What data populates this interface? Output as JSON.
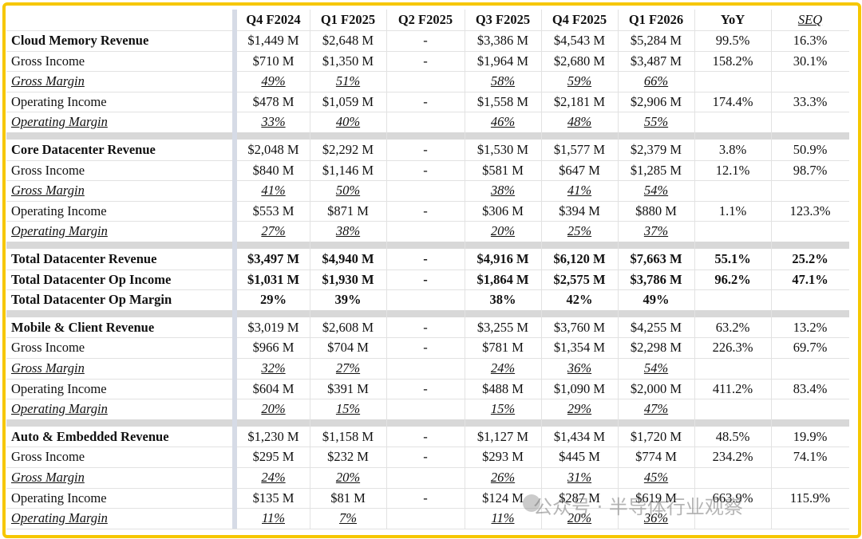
{
  "table": {
    "header": [
      "Q4 F2024",
      "Q1 F2025",
      "Q2 F2025",
      "Q3 F2025",
      "Q4 F2025",
      "Q1 F2026",
      "YoY",
      "SEQ"
    ],
    "groups": [
      {
        "rows": [
          {
            "label": "Cloud Memory Revenue",
            "cells": [
              "$1,449 M",
              "$2,648 M",
              "-",
              "$3,386 M",
              "$4,543 M",
              "$5,284 M",
              "99.5%",
              "16.3%"
            ]
          },
          {
            "label": "Gross Income",
            "cells": [
              "$710 M",
              "$1,350 M",
              "-",
              "$1,964 M",
              "$2,680 M",
              "$3,487 M",
              "158.2%",
              "30.1%"
            ]
          },
          {
            "label": "Gross Margin",
            "cells": [
              "49%",
              "51%",
              null,
              "58%",
              "59%",
              "66%",
              null,
              null
            ]
          },
          {
            "label": "Operating Income",
            "cells": [
              "$478 M",
              "$1,059 M",
              "-",
              "$1,558 M",
              "$2,181 M",
              "$2,906 M",
              "174.4%",
              "33.3%"
            ]
          },
          {
            "label": "Operating Margin",
            "cells": [
              "33%",
              "40%",
              null,
              "46%",
              "48%",
              "55%",
              null,
              null
            ]
          }
        ]
      },
      {
        "rows": [
          {
            "label": "Core Datacenter Revenue",
            "cells": [
              "$2,048 M",
              "$2,292 M",
              "-",
              "$1,530 M",
              "$1,577 M",
              "$2,379 M",
              "3.8%",
              "50.9%"
            ]
          },
          {
            "label": "Gross Income",
            "cells": [
              "$840 M",
              "$1,146 M",
              "-",
              "$581 M",
              "$647 M",
              "$1,285 M",
              "12.1%",
              "98.7%"
            ]
          },
          {
            "label": "Gross Margin",
            "cells": [
              "41%",
              "50%",
              null,
              "38%",
              "41%",
              "54%",
              null,
              null
            ]
          },
          {
            "label": "Operating Income",
            "cells": [
              "$553 M",
              "$871 M",
              "-",
              "$306 M",
              "$394 M",
              "$880 M",
              "1.1%",
              "123.3%"
            ]
          },
          {
            "label": "Operating Margin",
            "cells": [
              "27%",
              "38%",
              null,
              "20%",
              "25%",
              "37%",
              null,
              null
            ]
          }
        ]
      },
      {
        "rows": [
          {
            "label": "Total Datacenter Revenue",
            "cells": [
              "$3,497 M",
              "$4,940 M",
              "-",
              "$4,916 M",
              "$6,120 M",
              "$7,663 M",
              "55.1%",
              "25.2%"
            ]
          },
          {
            "label": "Total Datacenter Op Income",
            "cells": [
              "$1,031 M",
              "$1,930 M",
              "-",
              "$1,864 M",
              "$2,575 M",
              "$3,786 M",
              "96.2%",
              "47.1%"
            ]
          },
          {
            "label": "Total Datacenter Op Margin",
            "cells": [
              "29%",
              "39%",
              null,
              "38%",
              "42%",
              "49%",
              null,
              null
            ]
          }
        ]
      },
      {
        "rows": [
          {
            "label": "Mobile & Client Revenue",
            "cells": [
              "$3,019 M",
              "$2,608 M",
              "-",
              "$3,255 M",
              "$3,760 M",
              "$4,255 M",
              "63.2%",
              "13.2%"
            ]
          },
          {
            "label": "Gross Income",
            "cells": [
              "$966 M",
              "$704 M",
              "-",
              "$781 M",
              "$1,354 M",
              "$2,298 M",
              "226.3%",
              "69.7%"
            ]
          },
          {
            "label": "Gross Margin",
            "cells": [
              "32%",
              "27%",
              null,
              "24%",
              "36%",
              "54%",
              null,
              null
            ]
          },
          {
            "label": "Operating Income",
            "cells": [
              "$604 M",
              "$391 M",
              "-",
              "$488 M",
              "$1,090 M",
              "$2,000 M",
              "411.2%",
              "83.4%"
            ]
          },
          {
            "label": "Operating Margin",
            "cells": [
              "20%",
              "15%",
              null,
              "15%",
              "29%",
              "47%",
              null,
              null
            ]
          }
        ]
      },
      {
        "rows": [
          {
            "label": "Auto & Embedded Revenue",
            "cells": [
              "$1,230 M",
              "$1,158 M",
              "-",
              "$1,127 M",
              "$1,434 M",
              "$1,720 M",
              "48.5%",
              "19.9%"
            ]
          },
          {
            "label": "Gross Income",
            "cells": [
              "$295 M",
              "$232 M",
              "-",
              "$293 M",
              "$445 M",
              "$774 M",
              "234.2%",
              "74.1%"
            ]
          },
          {
            "label": "Gross Margin",
            "cells": [
              "24%",
              "20%",
              null,
              "26%",
              "31%",
              "45%",
              null,
              null
            ]
          },
          {
            "label": "Operating Income",
            "cells": [
              "$135 M",
              "$81 M",
              "-",
              "$124 M",
              "$287 M",
              "$619 M",
              "663.9%",
              "115.9%"
            ]
          },
          {
            "label": "Operating Margin",
            "cells": [
              "11%",
              "7%",
              null,
              "11%",
              "20%",
              "36%",
              null,
              null
            ]
          }
        ]
      }
    ]
  },
  "watermark": "公众号 · 半导体行业观察"
}
